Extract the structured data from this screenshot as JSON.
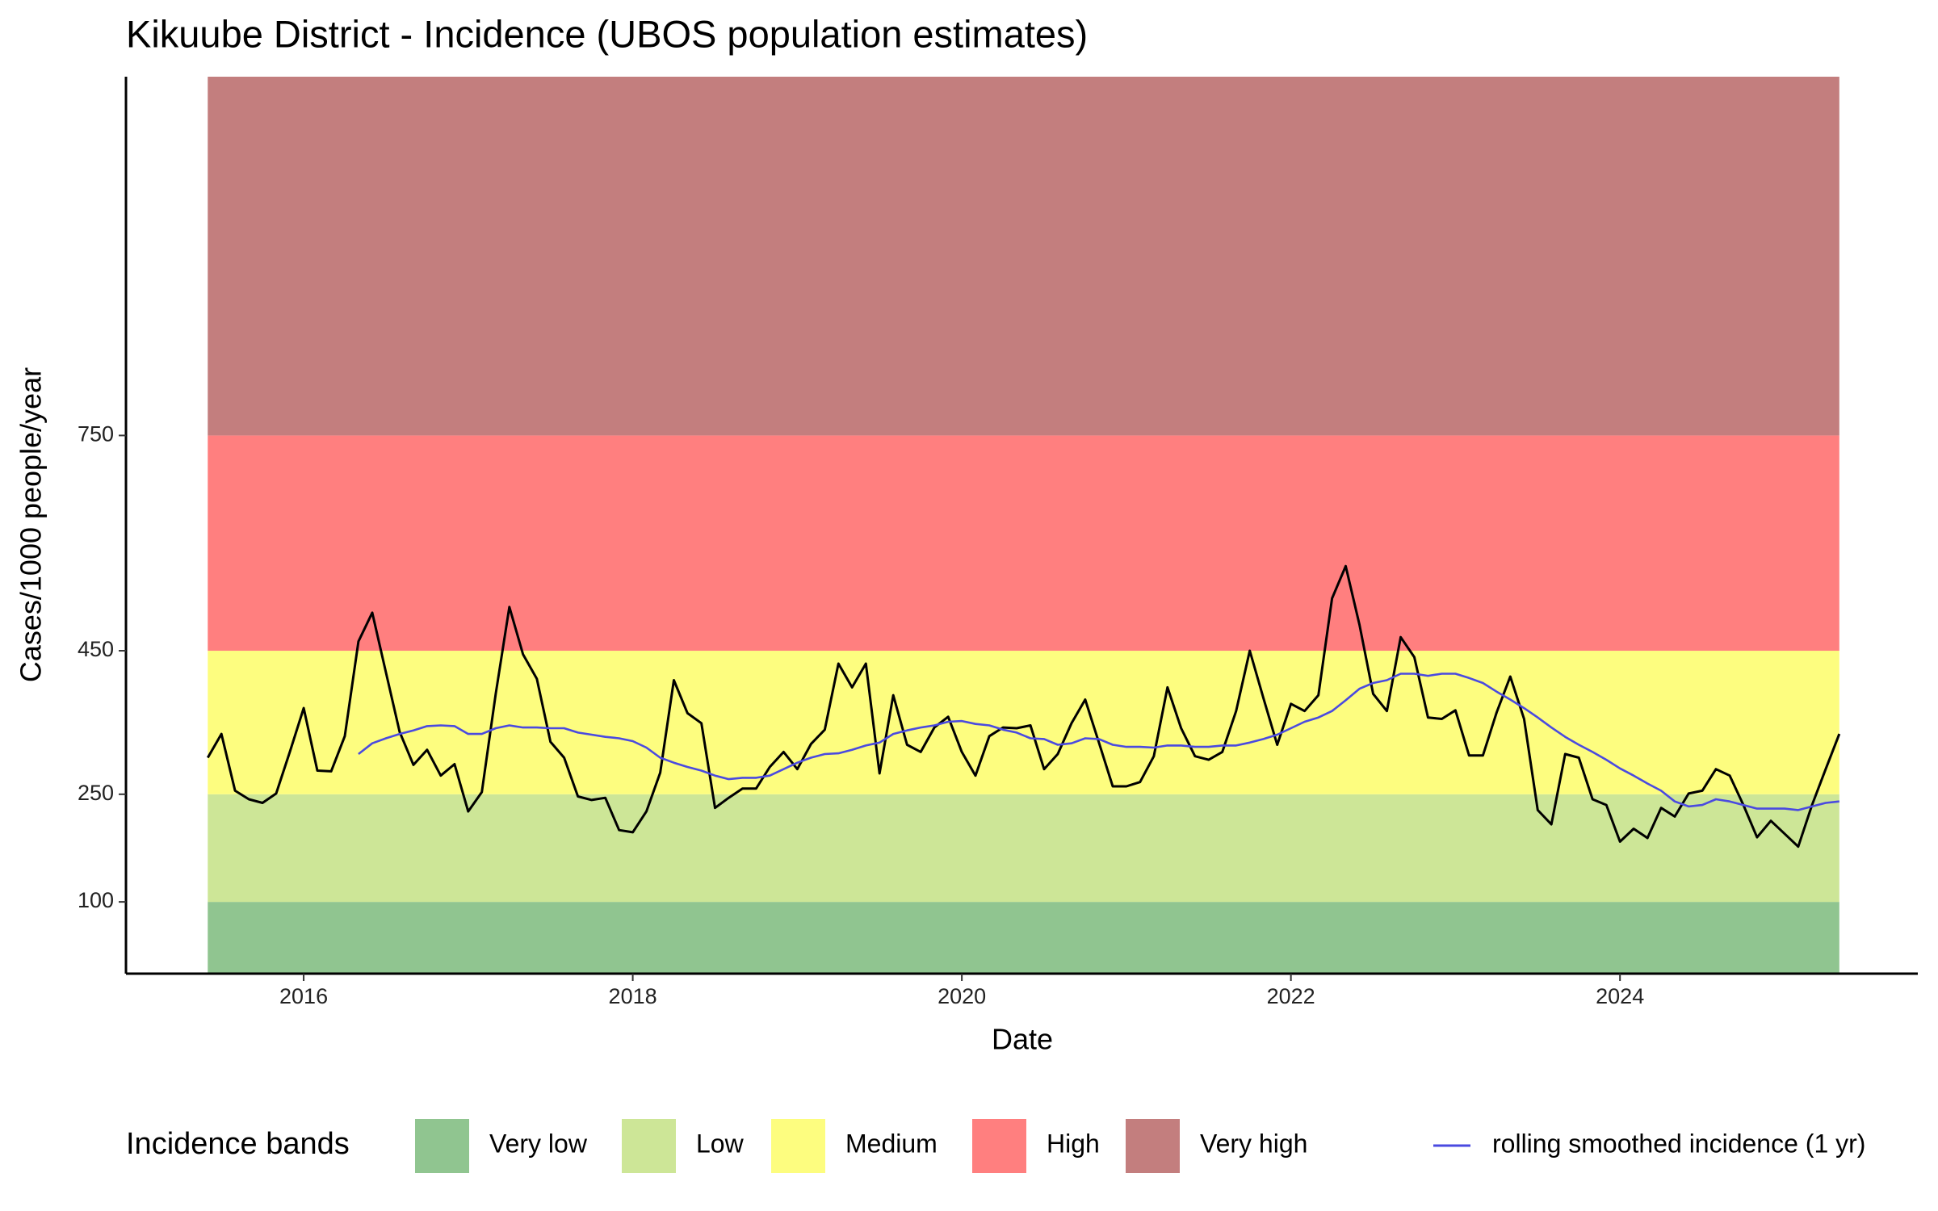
{
  "chart_data": {
    "type": "line",
    "title": "Kikuube District - Incidence (UBOS population estimates)",
    "x_label": "Date",
    "y_label": "Cases/1000 people/year",
    "xlim": [
      2014.92,
      2025.81
    ],
    "xticks": [
      2016,
      2018,
      2020,
      2022,
      2024
    ],
    "ylim": [
      0,
      1250
    ],
    "yticks": [
      100,
      250,
      450,
      750
    ],
    "legend_title": "Incidence bands",
    "legend_position": "bottom",
    "bands": [
      {
        "name": "Very low",
        "color": "#90c590",
        "range": [
          0,
          100
        ]
      },
      {
        "name": "Low",
        "color": "#cde697",
        "range": [
          100,
          250
        ]
      },
      {
        "name": "Medium",
        "color": "#fdfd7f",
        "range": [
          250,
          450
        ]
      },
      {
        "name": "High",
        "color": "#ff7f7f",
        "range": [
          450,
          750
        ]
      },
      {
        "name": "Very high",
        "color": "#c37e7e",
        "range": [
          750,
          1250
        ]
      }
    ],
    "x": [
      2015.417,
      2015.5,
      2015.583,
      2015.667,
      2015.75,
      2015.833,
      2015.917,
      2016,
      2016.083,
      2016.167,
      2016.25,
      2016.333,
      2016.417,
      2016.5,
      2016.583,
      2016.667,
      2016.75,
      2016.833,
      2016.917,
      2017,
      2017.083,
      2017.167,
      2017.25,
      2017.333,
      2017.417,
      2017.5,
      2017.583,
      2017.667,
      2017.75,
      2017.833,
      2017.917,
      2018,
      2018.083,
      2018.167,
      2018.25,
      2018.333,
      2018.417,
      2018.5,
      2018.583,
      2018.667,
      2018.75,
      2018.833,
      2018.917,
      2019,
      2019.083,
      2019.167,
      2019.25,
      2019.333,
      2019.417,
      2019.5,
      2019.583,
      2019.667,
      2019.75,
      2019.833,
      2019.917,
      2020,
      2020.083,
      2020.167,
      2020.25,
      2020.333,
      2020.417,
      2020.5,
      2020.583,
      2020.667,
      2020.75,
      2020.833,
      2020.917,
      2021,
      2021.083,
      2021.167,
      2021.25,
      2021.333,
      2021.417,
      2021.5,
      2021.583,
      2021.667,
      2021.75,
      2021.833,
      2021.917,
      2022,
      2022.083,
      2022.167,
      2022.25,
      2022.333,
      2022.417,
      2022.5,
      2022.583,
      2022.667,
      2022.75,
      2022.833,
      2022.917,
      2023,
      2023.083,
      2023.167,
      2023.25,
      2023.333,
      2023.417,
      2023.5,
      2023.583,
      2023.667,
      2023.75,
      2023.833,
      2023.917,
      2024,
      2024.083,
      2024.167,
      2024.25,
      2024.333,
      2024.417,
      2024.5,
      2024.583,
      2024.667,
      2024.75,
      2024.833,
      2024.917,
      2025,
      2025.083,
      2025.167,
      2025.25,
      2025.333
    ],
    "series": [
      {
        "color": "#000000",
        "values": [
          301,
          334,
          255,
          243,
          238,
          251,
          310,
          370,
          283,
          282,
          331,
          463,
          503,
          420,
          337,
          291,
          312,
          276,
          292,
          226,
          253,
          390,
          511,
          445,
          411,
          323,
          301,
          247,
          242,
          245,
          200,
          197,
          226,
          280,
          409,
          363,
          349,
          231,
          245,
          258,
          258,
          288,
          309,
          285,
          320,
          340,
          432,
          399,
          432,
          279,
          388,
          319,
          309,
          343,
          358,
          309,
          276,
          331,
          343,
          342,
          346,
          285,
          306,
          349,
          382,
          322,
          261,
          261,
          267,
          303,
          399,
          342,
          303,
          298,
          309,
          366,
          450,
          384,
          319,
          376,
          366,
          388,
          523,
          568,
          486,
          390,
          366,
          469,
          441,
          357,
          355,
          367,
          304,
          304,
          364,
          414,
          355,
          228,
          208,
          306,
          301,
          243,
          235,
          184,
          202,
          189,
          231,
          219,
          251,
          255,
          285,
          276,
          235,
          190,
          213,
          195,
          177,
          235,
          285,
          334
        ]
      },
      {
        "name": "rolling smoothed incidence (1 yr)",
        "color": "#4a4ae0",
        "values": [
          null,
          null,
          null,
          null,
          null,
          null,
          null,
          null,
          null,
          null,
          null,
          306,
          321,
          328,
          334,
          339,
          345,
          346,
          345,
          334,
          334,
          342,
          346,
          343,
          343,
          342,
          342,
          336,
          333,
          330,
          328,
          324,
          315,
          301,
          294,
          288,
          283,
          276,
          271,
          273,
          273,
          276,
          285,
          294,
          301,
          306,
          307,
          312,
          318,
          322,
          334,
          339,
          343,
          346,
          351,
          352,
          348,
          346,
          340,
          336,
          328,
          327,
          319,
          321,
          328,
          327,
          319,
          316,
          316,
          315,
          318,
          318,
          316,
          316,
          318,
          318,
          322,
          327,
          333,
          342,
          351,
          357,
          366,
          381,
          397,
          405,
          409,
          418,
          418,
          415,
          418,
          418,
          412,
          405,
          393,
          382,
          370,
          357,
          343,
          330,
          319,
          309,
          298,
          286,
          276,
          265,
          255,
          240,
          233,
          235,
          243,
          240,
          235,
          230,
          230,
          230,
          228,
          233,
          238,
          240
        ]
      }
    ]
  }
}
